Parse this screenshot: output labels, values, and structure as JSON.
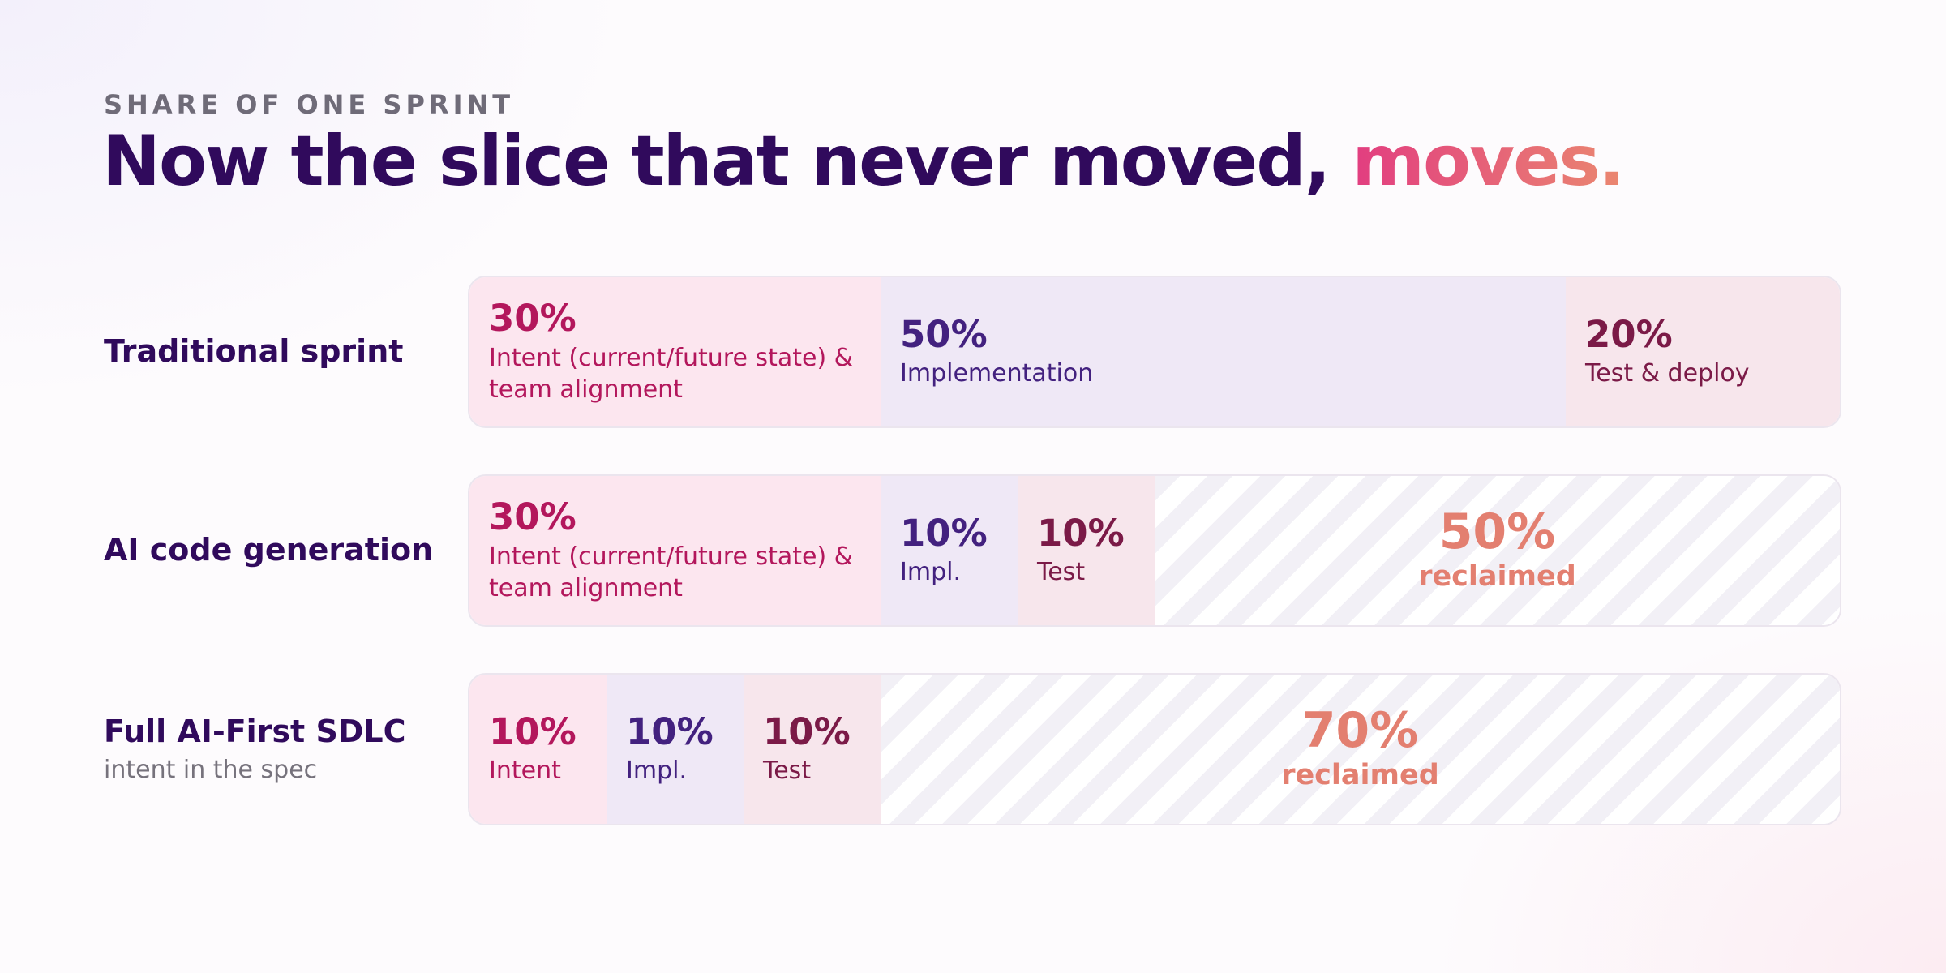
{
  "eyebrow": "SHARE OF ONE SPRINT",
  "title_main": "Now the slice that never moved, ",
  "title_accent": "moves.",
  "colors": {
    "title": "#300a5c",
    "accent_start": "#e23d80",
    "accent_end": "#ea8770",
    "intent": "#b3175c",
    "impl": "#43217f",
    "test": "#7b1a47",
    "reclaimed": "#e37f70"
  },
  "chart_data": {
    "type": "bar",
    "stacked": true,
    "orientation": "horizontal",
    "unit": "%",
    "rows": [
      {
        "label": "Traditional sprint",
        "sublabel": "",
        "segments": [
          {
            "kind": "intent",
            "value": 30,
            "display": "30%",
            "label": "Intent (current/future state) & team alignment"
          },
          {
            "kind": "impl",
            "value": 50,
            "display": "50%",
            "label": "Implementation"
          },
          {
            "kind": "test",
            "value": 20,
            "display": "20%",
            "label": "Test & deploy"
          }
        ]
      },
      {
        "label": "AI code generation",
        "sublabel": "",
        "segments": [
          {
            "kind": "intent",
            "value": 30,
            "display": "30%",
            "label": "Intent (current/future state) & team alignment"
          },
          {
            "kind": "impl",
            "value": 10,
            "display": "10%",
            "label": "Impl."
          },
          {
            "kind": "test",
            "value": 10,
            "display": "10%",
            "label": "Test"
          },
          {
            "kind": "reclaimed",
            "value": 50,
            "display": "50%",
            "label": "reclaimed"
          }
        ]
      },
      {
        "label": "Full AI-First SDLC",
        "sublabel": "intent in the spec",
        "segments": [
          {
            "kind": "intent",
            "value": 10,
            "display": "10%",
            "label": "Intent"
          },
          {
            "kind": "impl",
            "value": 10,
            "display": "10%",
            "label": "Impl."
          },
          {
            "kind": "test",
            "value": 10,
            "display": "10%",
            "label": "Test"
          },
          {
            "kind": "reclaimed",
            "value": 70,
            "display": "70%",
            "label": "reclaimed"
          }
        ]
      }
    ]
  }
}
